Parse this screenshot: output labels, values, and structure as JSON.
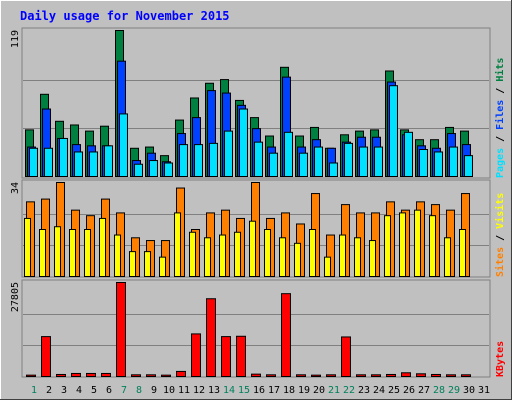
{
  "chart_data": [
    {
      "type": "bar",
      "title": "Daily usage for November 2015",
      "panel": "hits-files-pages",
      "ymax_label": "119",
      "ylim": [
        0,
        119
      ],
      "grid": true,
      "legend": [
        "Pages",
        "Files",
        "Hits"
      ],
      "legend_separator": " / ",
      "categories": [
        "1",
        "2",
        "3",
        "4",
        "5",
        "6",
        "7",
        "8",
        "9",
        "10",
        "11",
        "12",
        "13",
        "14",
        "15",
        "16",
        "17",
        "18",
        "19",
        "20",
        "21",
        "22",
        "23",
        "24",
        "25",
        "26",
        "27",
        "28",
        "29",
        "30",
        "31"
      ],
      "series": [
        {
          "name": "Hits",
          "values": [
            38,
            67,
            45,
            42,
            37,
            41,
            119,
            23,
            24,
            17,
            46,
            64,
            76,
            79,
            62,
            48,
            33,
            89,
            33,
            40,
            23,
            34,
            37,
            38,
            86,
            38,
            30,
            30,
            40,
            37,
            0
          ]
        },
        {
          "name": "Files",
          "values": [
            24,
            55,
            31,
            26,
            25,
            25,
            94,
            13,
            19,
            12,
            35,
            48,
            70,
            68,
            58,
            39,
            24,
            81,
            24,
            30,
            23,
            28,
            32,
            32,
            77,
            34,
            25,
            23,
            35,
            26,
            0
          ]
        },
        {
          "name": "Pages",
          "values": [
            23,
            23,
            31,
            20,
            20,
            25,
            51,
            10,
            13,
            11,
            26,
            26,
            27,
            37,
            55,
            28,
            19,
            36,
            19,
            24,
            11,
            27,
            24,
            24,
            74,
            36,
            22,
            20,
            24,
            17,
            0
          ]
        }
      ]
    },
    {
      "type": "bar",
      "panel": "sites-visits",
      "ymax_label": "34",
      "ylim": [
        0,
        34
      ],
      "grid": true,
      "legend": [
        "Sites",
        "Visits"
      ],
      "legend_separator": " / ",
      "categories": [
        "1",
        "2",
        "3",
        "4",
        "5",
        "6",
        "7",
        "8",
        "9",
        "10",
        "11",
        "12",
        "13",
        "14",
        "15",
        "16",
        "17",
        "18",
        "19",
        "20",
        "21",
        "22",
        "23",
        "24",
        "25",
        "26",
        "27",
        "28",
        "29",
        "30",
        "31"
      ],
      "series": [
        {
          "name": "Visits",
          "values": [
            27,
            28,
            34,
            24,
            22,
            28,
            23,
            14,
            13,
            13,
            32,
            17,
            23,
            24,
            21,
            34,
            21,
            23,
            19,
            30,
            15,
            26,
            23,
            23,
            27,
            24,
            27,
            26,
            24,
            30,
            0
          ]
        },
        {
          "name": "Sites",
          "values": [
            21,
            17,
            18,
            17,
            17,
            21,
            15,
            9,
            9,
            7,
            23,
            16,
            14,
            15,
            16,
            20,
            17,
            14,
            12,
            17,
            7,
            15,
            14,
            13,
            22,
            23,
            24,
            22,
            14,
            17,
            0
          ]
        }
      ]
    },
    {
      "type": "bar",
      "panel": "kbytes",
      "ymax_label": "27805",
      "ylim": [
        0,
        27805
      ],
      "grid": true,
      "legend": [
        "KBytes"
      ],
      "categories": [
        "1",
        "2",
        "3",
        "4",
        "5",
        "6",
        "7",
        "8",
        "9",
        "10",
        "11",
        "12",
        "13",
        "14",
        "15",
        "16",
        "17",
        "18",
        "19",
        "20",
        "21",
        "22",
        "23",
        "24",
        "25",
        "26",
        "27",
        "28",
        "29",
        "30",
        "31"
      ],
      "weekend_days": [
        "1",
        "7",
        "8",
        "14",
        "15",
        "21",
        "22",
        "28",
        "29"
      ],
      "series": [
        {
          "name": "KBytes",
          "values": [
            400,
            11800,
            600,
            900,
            900,
            900,
            27805,
            500,
            500,
            400,
            1500,
            12600,
            23000,
            11800,
            11900,
            700,
            500,
            24500,
            500,
            400,
            500,
            11700,
            500,
            500,
            600,
            1100,
            800,
            600,
            500,
            500,
            0
          ]
        }
      ]
    }
  ],
  "colors": {
    "background": "#c0c0c0",
    "frame": "#e0e0e0",
    "title": "#0000ff",
    "grid": "#808080",
    "hits": "#008040",
    "files": "#0040ff",
    "pages": "#00e0ff",
    "visits": "#ff8000",
    "sites": "#ffff00",
    "kbytes": "#ff0000",
    "weekend_label": "#00805c",
    "weekday_label": "#000000"
  }
}
